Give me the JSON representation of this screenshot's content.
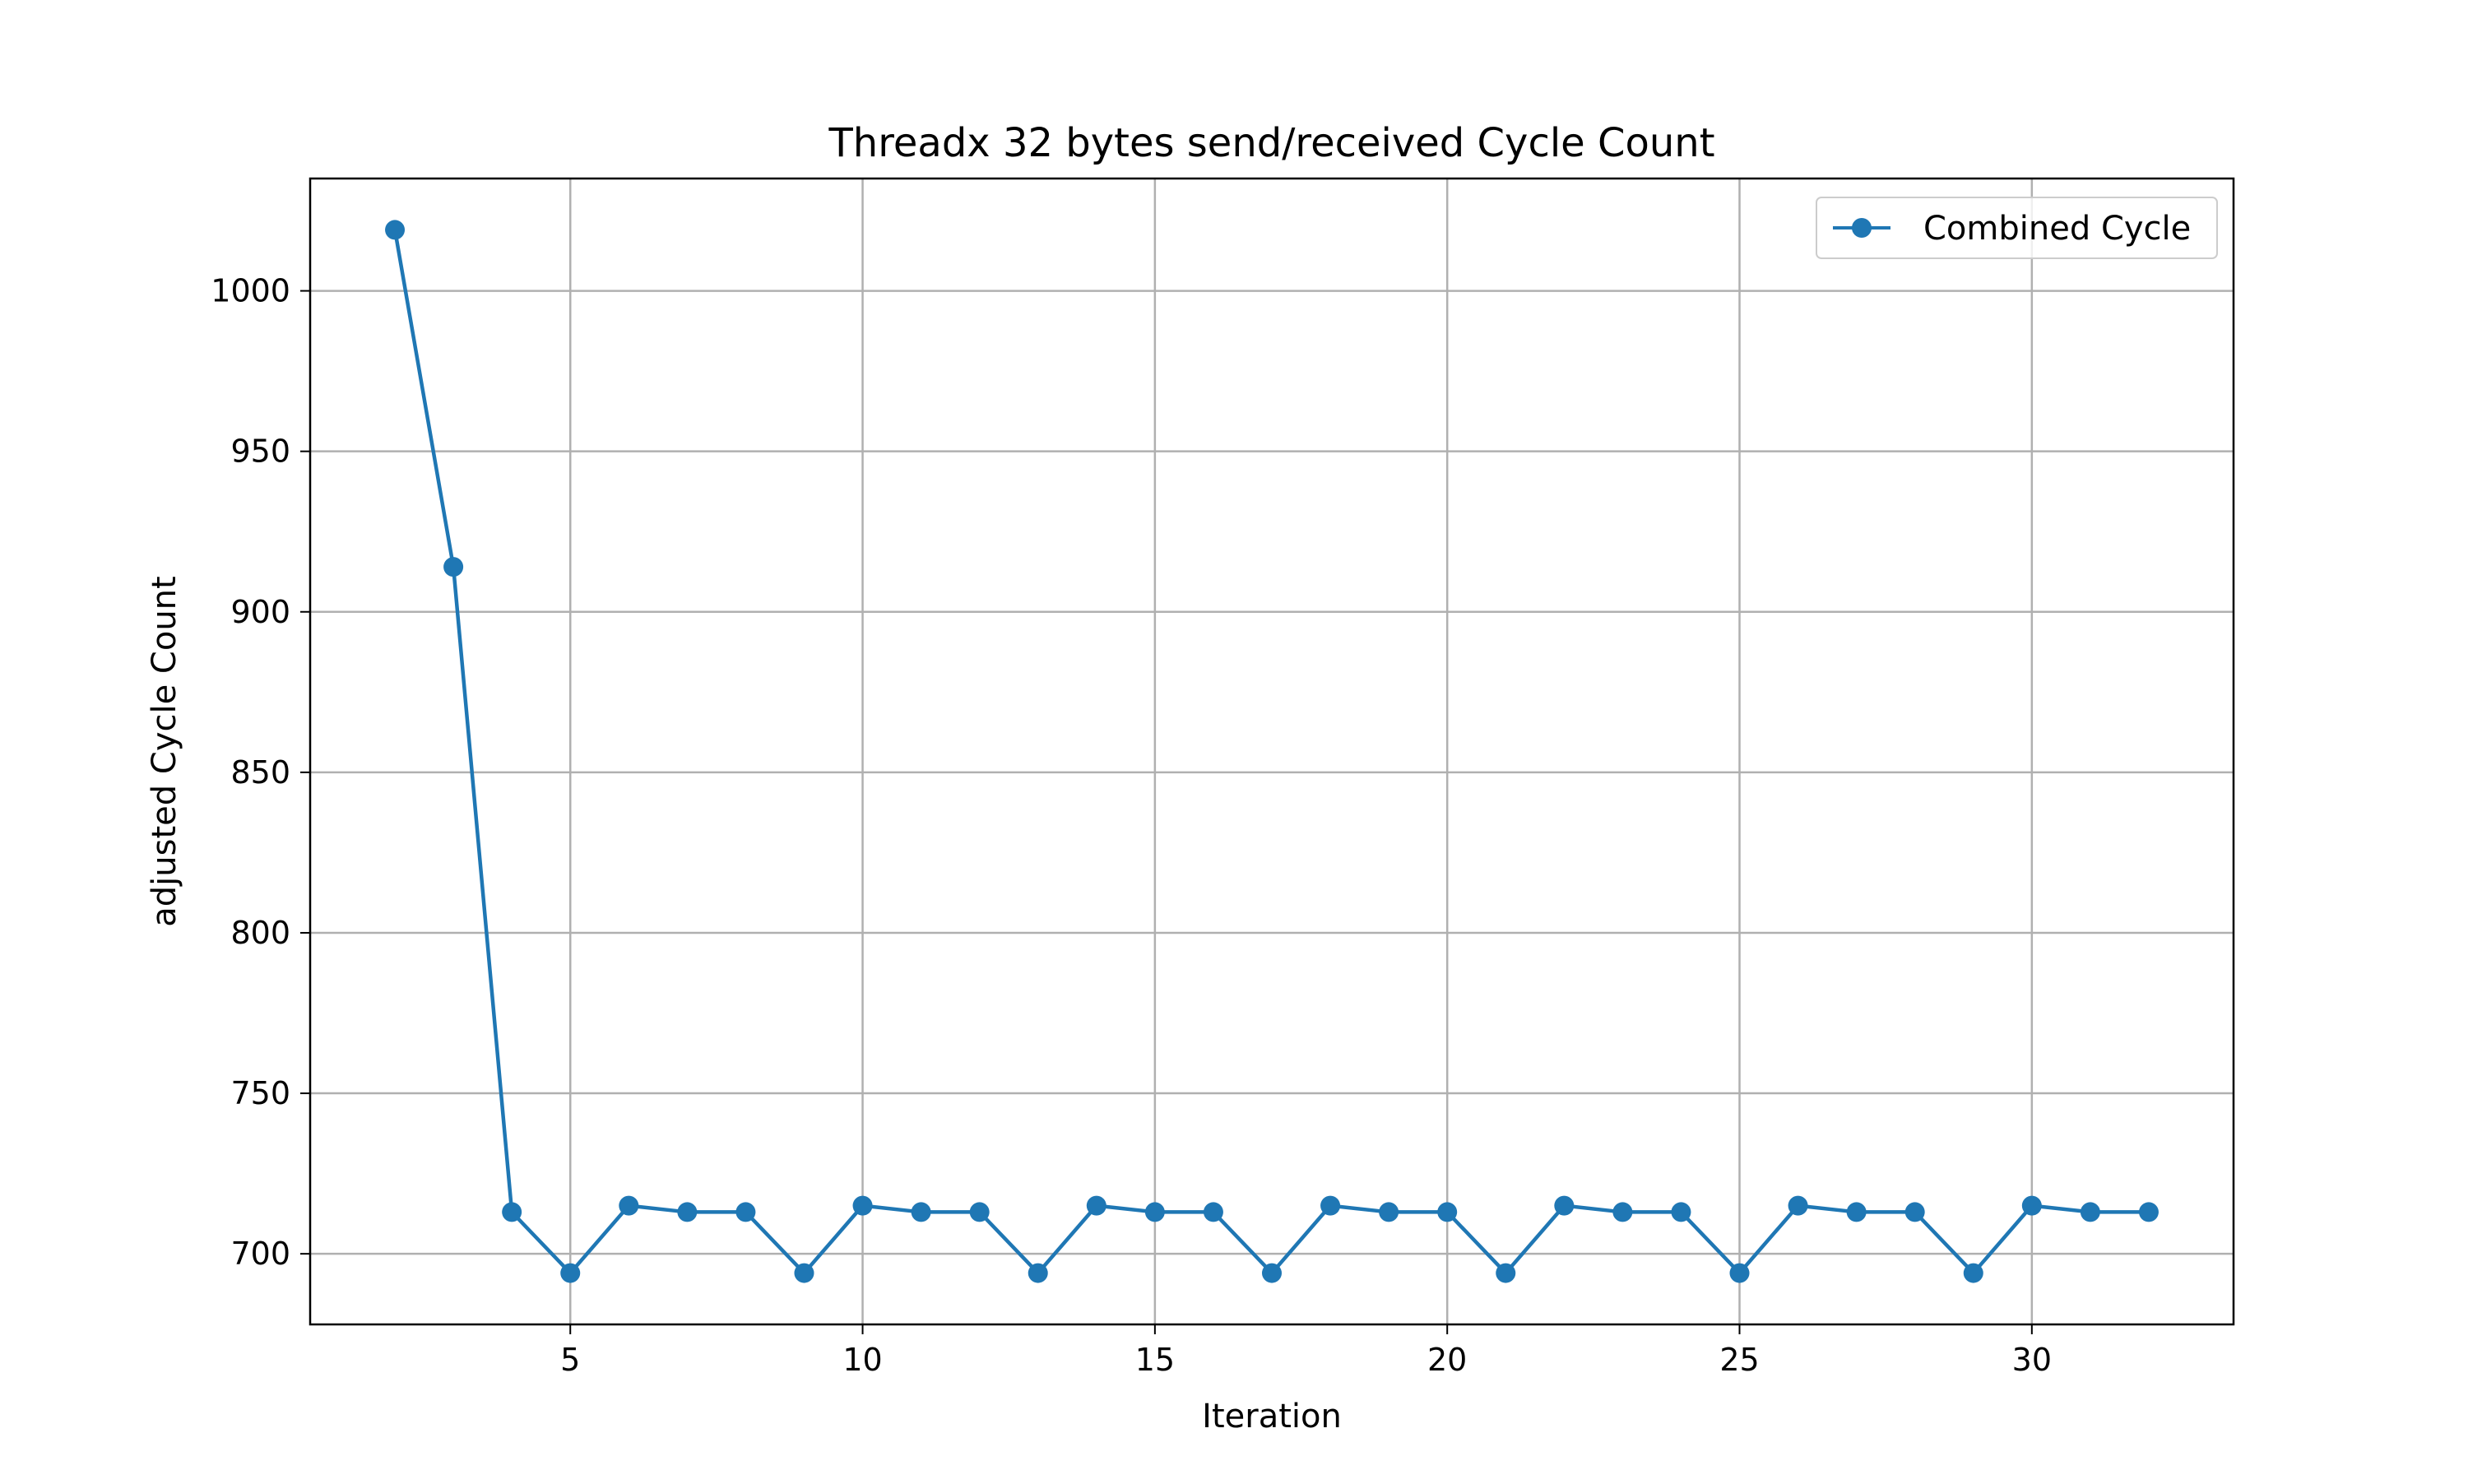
{
  "chart_data": {
    "type": "line",
    "title": "Threadx 32 bytes send/received Cycle Count",
    "xlabel": "Iteration",
    "ylabel": "adjusted Cycle Count",
    "xlim": [
      0.55,
      33.45
    ],
    "ylim": [
      678,
      1035
    ],
    "xticks": [
      5,
      10,
      15,
      20,
      25,
      30
    ],
    "yticks": [
      700,
      750,
      800,
      850,
      900,
      950,
      1000
    ],
    "grid": true,
    "legend_position": "top-right",
    "series": [
      {
        "name": "Combined Cycle",
        "color": "#1f77b4",
        "marker": "circle",
        "x": [
          2,
          3,
          4,
          5,
          6,
          7,
          8,
          9,
          10,
          11,
          12,
          13,
          14,
          15,
          16,
          17,
          18,
          19,
          20,
          21,
          22,
          23,
          24,
          25,
          26,
          27,
          28,
          29,
          30,
          31,
          32
        ],
        "y": [
          1019,
          914,
          713,
          694,
          715,
          713,
          713,
          694,
          715,
          713,
          713,
          694,
          715,
          713,
          713,
          694,
          715,
          713,
          713,
          694,
          715,
          713,
          713,
          694,
          715,
          713,
          713,
          694,
          715,
          713,
          713
        ]
      }
    ]
  }
}
